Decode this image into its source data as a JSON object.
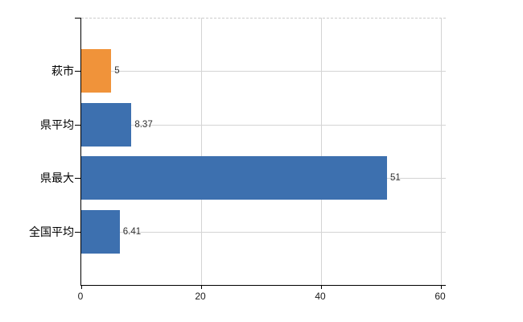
{
  "chart_data": {
    "type": "bar",
    "orientation": "horizontal",
    "title": "",
    "categories": [
      "萩市",
      "県平均",
      "県最大",
      "全国平均"
    ],
    "values": [
      5,
      8.37,
      51,
      6.41
    ],
    "value_labels": [
      "5",
      "8.37",
      "51",
      "6.41"
    ],
    "bar_colors": [
      "#F0933A",
      "#3D70AF",
      "#3D70AF",
      "#3D70AF"
    ],
    "x_ticks": [
      0,
      20,
      40,
      60
    ],
    "x_tick_labels": [
      "0",
      "20",
      "40",
      "60"
    ],
    "xlim": [
      0,
      60
    ],
    "grid": true,
    "legend": false,
    "colors": {
      "highlight_bar": "#F0933A",
      "default_bar": "#3D70AF",
      "gridline": "#d4d4d4",
      "axis": "#000000",
      "value_text": "#303030",
      "background": "#ffffff"
    }
  }
}
